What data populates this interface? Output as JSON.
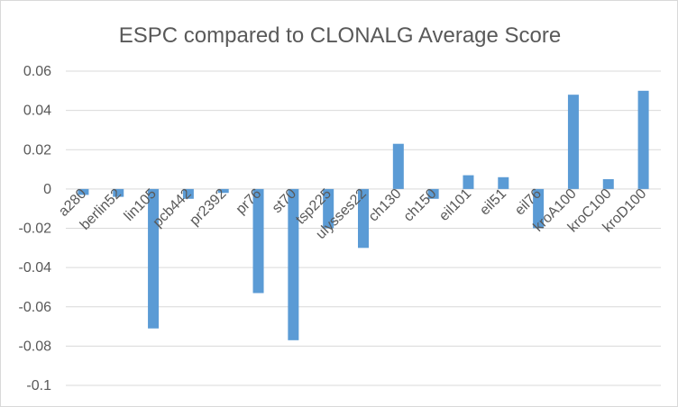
{
  "chart_data": {
    "type": "bar",
    "title": "ESPC compared to CLONALG Average Score",
    "xlabel": "",
    "ylabel": "",
    "categories": [
      "a280",
      "berlin52",
      "lin105",
      "pcb442",
      "pr2392",
      "pr76",
      "st70",
      "tsp225",
      "ulysses22",
      "ch130",
      "ch150",
      "eil101",
      "eil51",
      "eil76",
      "kroA100",
      "kroC100",
      "kroD100"
    ],
    "values": [
      -0.003,
      -0.004,
      -0.071,
      -0.005,
      -0.002,
      -0.053,
      -0.077,
      -0.02,
      -0.03,
      0.023,
      -0.005,
      0.007,
      0.006,
      -0.02,
      0.048,
      0.005,
      0.05
    ],
    "ylim": [
      -0.1,
      0.06
    ],
    "yticks": [
      0.06,
      0.04,
      0.02,
      0,
      -0.02,
      -0.04,
      -0.06,
      -0.08,
      -0.1
    ],
    "ytick_labels": [
      "0.06",
      "0.04",
      "0.02",
      "0",
      "-0.02",
      "-0.04",
      "-0.06",
      "-0.08",
      "-0.1"
    ],
    "grid": true,
    "bar_color": "#5b9bd5"
  }
}
